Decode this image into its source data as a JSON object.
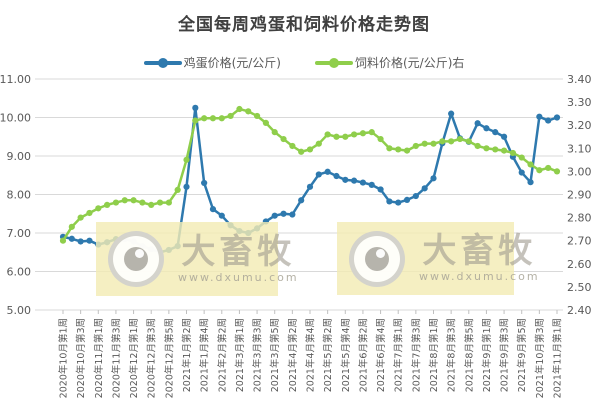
{
  "title": "全国每周鸡蛋和饲料价格走势图",
  "legend": [
    {
      "label": "鸡蛋价格(元/公斤)",
      "color": "#2e79ae"
    },
    {
      "label": "饲料价格(元/公斤)右",
      "color": "#8fce4b"
    }
  ],
  "watermark": {
    "brand": "大畜牧",
    "url": "www.dxumu.com"
  },
  "colors": {
    "egg_line": "#2e79ae",
    "feed_line": "#8fce4b",
    "grid": "#d9d9d9",
    "axis_text": "#595959",
    "title_text": "#404040",
    "watermark_bg": "#f3ecb4"
  },
  "chart_data": {
    "type": "line",
    "title": "全国每周鸡蛋和饲料价格走势图",
    "grid": "horizontal",
    "legend_position": "top",
    "left_axis": {
      "min": 5.0,
      "max": 11.0,
      "ticks": [
        "11.00",
        "10.00",
        "9.00",
        "8.00",
        "7.00",
        "6.00",
        "5.00"
      ]
    },
    "right_axis": {
      "min": 2.4,
      "max": 3.4,
      "ticks": [
        "3.40",
        "3.30",
        "3.20",
        "3.10",
        "3.00",
        "2.90",
        "2.80",
        "2.70",
        "2.60",
        "2.50",
        "2.40"
      ]
    },
    "x_tick_labels": [
      "2020年10月第1周",
      "2020年10月第3周",
      "2020年11月第1周",
      "2020年11月第3周",
      "2020年12月第1周",
      "2020年12月第3周",
      "2020年12月第5周",
      "2021年1月第2周",
      "2021年1月第4周",
      "2021年2月第2周",
      "2021年3月第1周",
      "2021年3月第3周",
      "2021年3月第5周",
      "2021年4月第2周",
      "2021年4月第4周",
      "2021年5月第2周",
      "2021年5月第4周",
      "2021年6月第2周",
      "2021年6月第4周",
      "2021年7月第1周",
      "2021年7月第3周",
      "2021年8月第1周",
      "2021年8月第3周",
      "2021年8月第5周",
      "2021年9月第1周",
      "2021年9月第3周",
      "2021年9月第5周",
      "2021年10月第3周",
      "2021年11月第1周"
    ],
    "x_labels_every_n_points": 2,
    "series": [
      {
        "name": "鸡蛋价格(元/公斤)",
        "axis": "left",
        "color": "#2e79ae",
        "values": [
          6.9,
          6.85,
          6.78,
          6.8,
          6.7,
          6.76,
          6.84,
          6.84,
          6.78,
          6.66,
          6.58,
          6.5,
          6.56,
          6.66,
          8.2,
          10.25,
          8.3,
          7.62,
          7.45,
          7.2,
          7.05,
          7.0,
          7.12,
          7.3,
          7.45,
          7.5,
          7.48,
          7.85,
          8.2,
          8.52,
          8.59,
          8.48,
          8.38,
          8.36,
          8.31,
          8.25,
          8.13,
          7.82,
          7.79,
          7.86,
          7.96,
          8.16,
          8.42,
          9.33,
          10.1,
          9.46,
          9.37,
          9.85,
          9.72,
          9.62,
          9.5,
          8.98,
          8.57,
          8.32,
          10.02,
          9.92,
          10.0
        ]
      },
      {
        "name": "饲料价格(元/公斤)右",
        "axis": "right",
        "color": "#8fce4b",
        "values": [
          2.7,
          2.76,
          2.8,
          2.82,
          2.84,
          2.855,
          2.865,
          2.875,
          2.875,
          2.865,
          2.855,
          2.865,
          2.865,
          2.92,
          3.05,
          3.22,
          3.23,
          3.23,
          3.23,
          3.24,
          3.27,
          3.26,
          3.24,
          3.21,
          3.17,
          3.14,
          3.11,
          3.085,
          3.095,
          3.12,
          3.16,
          3.15,
          3.15,
          3.16,
          3.165,
          3.17,
          3.14,
          3.1,
          3.095,
          3.09,
          3.11,
          3.12,
          3.12,
          3.13,
          3.13,
          3.14,
          3.13,
          3.11,
          3.1,
          3.095,
          3.09,
          3.08,
          3.06,
          3.03,
          3.005,
          3.015,
          3.0
        ]
      }
    ]
  }
}
